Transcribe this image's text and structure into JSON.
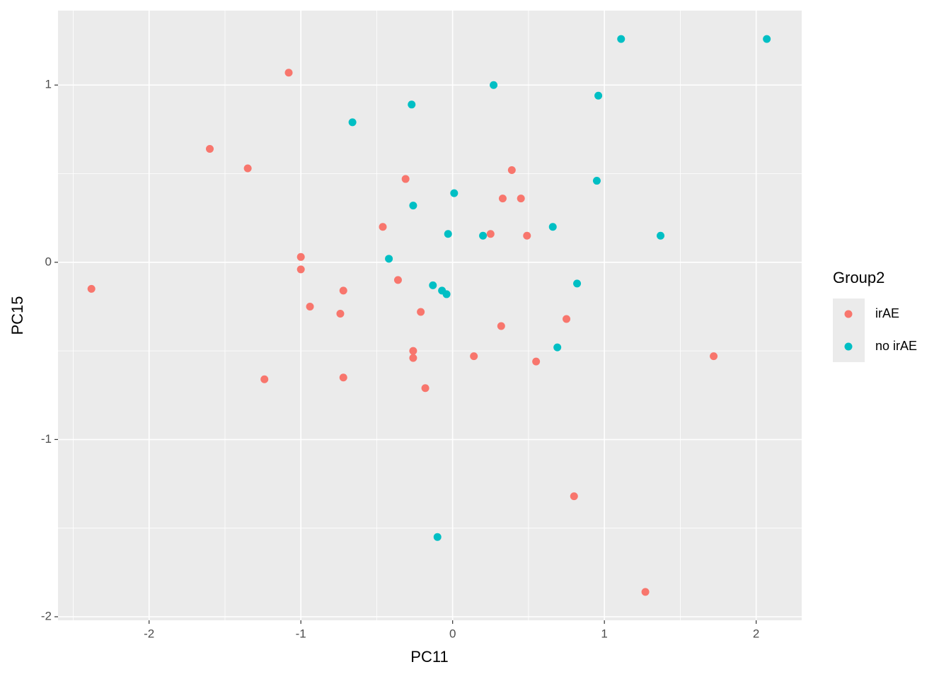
{
  "chart_data": {
    "type": "scatter",
    "x_label": "PC11",
    "y_label": "PC15",
    "legend_title": "Group2",
    "legend_position": "right",
    "grid": true,
    "xlim": [
      -2.6,
      2.3
    ],
    "ylim": [
      -2.02,
      1.42
    ],
    "xticks": [
      -2,
      -1,
      0,
      1,
      2
    ],
    "yticks": [
      -2,
      -1,
      0,
      1
    ],
    "x_minor_ticks": [
      -2.5,
      -1.5,
      -0.5,
      0.5,
      1.5
    ],
    "y_minor_ticks": [
      -1.5,
      -0.5,
      0.5
    ],
    "series": [
      {
        "name": "irAE",
        "color": "#F8766D",
        "x": [
          -2.38,
          -1.6,
          -1.35,
          -1.08,
          -1.0,
          -1.0,
          -0.94,
          -0.72,
          -0.74,
          -1.24,
          -0.72,
          -0.46,
          -0.31,
          -0.36,
          -0.21,
          -0.26,
          -0.26,
          -0.18,
          0.14,
          0.25,
          0.33,
          0.39,
          0.45,
          0.49,
          0.32,
          0.55,
          0.75,
          0.8,
          1.27,
          1.72
        ],
        "values": [
          -0.15,
          0.64,
          0.53,
          1.07,
          0.03,
          -0.04,
          -0.25,
          -0.16,
          -0.29,
          -0.66,
          -0.65,
          0.2,
          0.47,
          -0.1,
          -0.28,
          -0.5,
          -0.54,
          -0.71,
          -0.53,
          0.16,
          0.36,
          0.52,
          0.36,
          0.15,
          -0.36,
          -0.56,
          -0.32,
          -1.32,
          -1.86,
          -0.53
        ]
      },
      {
        "name": "no irAE",
        "color": "#00BFC4",
        "x": [
          -0.66,
          -0.27,
          0.27,
          1.11,
          2.07,
          0.96,
          0.95,
          0.01,
          -0.26,
          -0.03,
          0.2,
          0.66,
          1.37,
          -0.42,
          -0.13,
          -0.07,
          -0.04,
          0.82,
          0.69,
          -0.1
        ],
        "values": [
          0.79,
          0.89,
          1.0,
          1.26,
          1.26,
          0.94,
          0.46,
          0.39,
          0.32,
          0.16,
          0.15,
          0.2,
          0.15,
          0.02,
          -0.13,
          -0.16,
          -0.18,
          -0.12,
          -0.48,
          -1.55
        ]
      }
    ]
  }
}
